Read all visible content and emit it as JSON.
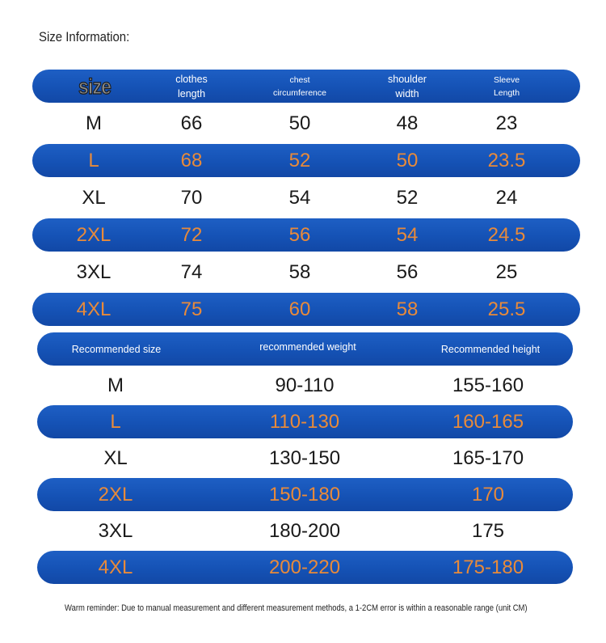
{
  "title": "Size Information:",
  "table1": {
    "headers": {
      "size": "size",
      "length_1": "clothes",
      "length_2": "length",
      "chest_1": "chest",
      "chest_2": "circumference",
      "shoulder_1": "shoulder",
      "shoulder_2": "width",
      "sleeve_1": "Sleeve",
      "sleeve_2": "Length"
    },
    "rows": [
      {
        "size": "M",
        "length": "66",
        "chest": "50",
        "shoulder": "48",
        "sleeve": "23"
      },
      {
        "size": "L",
        "length": "68",
        "chest": "52",
        "shoulder": "50",
        "sleeve": "23.5"
      },
      {
        "size": "XL",
        "length": "70",
        "chest": "54",
        "shoulder": "52",
        "sleeve": "24"
      },
      {
        "size": "2XL",
        "length": "72",
        "chest": "56",
        "shoulder": "54",
        "sleeve": "24.5"
      },
      {
        "size": "3XL",
        "length": "74",
        "chest": "58",
        "shoulder": "56",
        "sleeve": "25"
      },
      {
        "size": "4XL",
        "length": "75",
        "chest": "60",
        "shoulder": "58",
        "sleeve": "25.5"
      }
    ]
  },
  "table2": {
    "headers": {
      "size": "Recommended size",
      "weight": "recommended weight",
      "height": "Recommended height"
    },
    "rows": [
      {
        "size": "M",
        "weight": "90-110",
        "height": "155-160"
      },
      {
        "size": "L",
        "weight": "110-130",
        "height": "160-165"
      },
      {
        "size": "XL",
        "weight": "130-150",
        "height": "165-170"
      },
      {
        "size": "2XL",
        "weight": "150-180",
        "height": "170"
      },
      {
        "size": "3XL",
        "weight": "180-200",
        "height": "175"
      },
      {
        "size": "4XL",
        "weight": "200-220",
        "height": "175-180"
      }
    ]
  },
  "note": "Warm reminder: Due to manual measurement and different measurement methods, a 1-2CM error is within a reasonable range (unit CM)",
  "colors": {
    "band": "#1552b5",
    "highlight_text": "#e88a3a",
    "text": "#1a1a1a"
  }
}
